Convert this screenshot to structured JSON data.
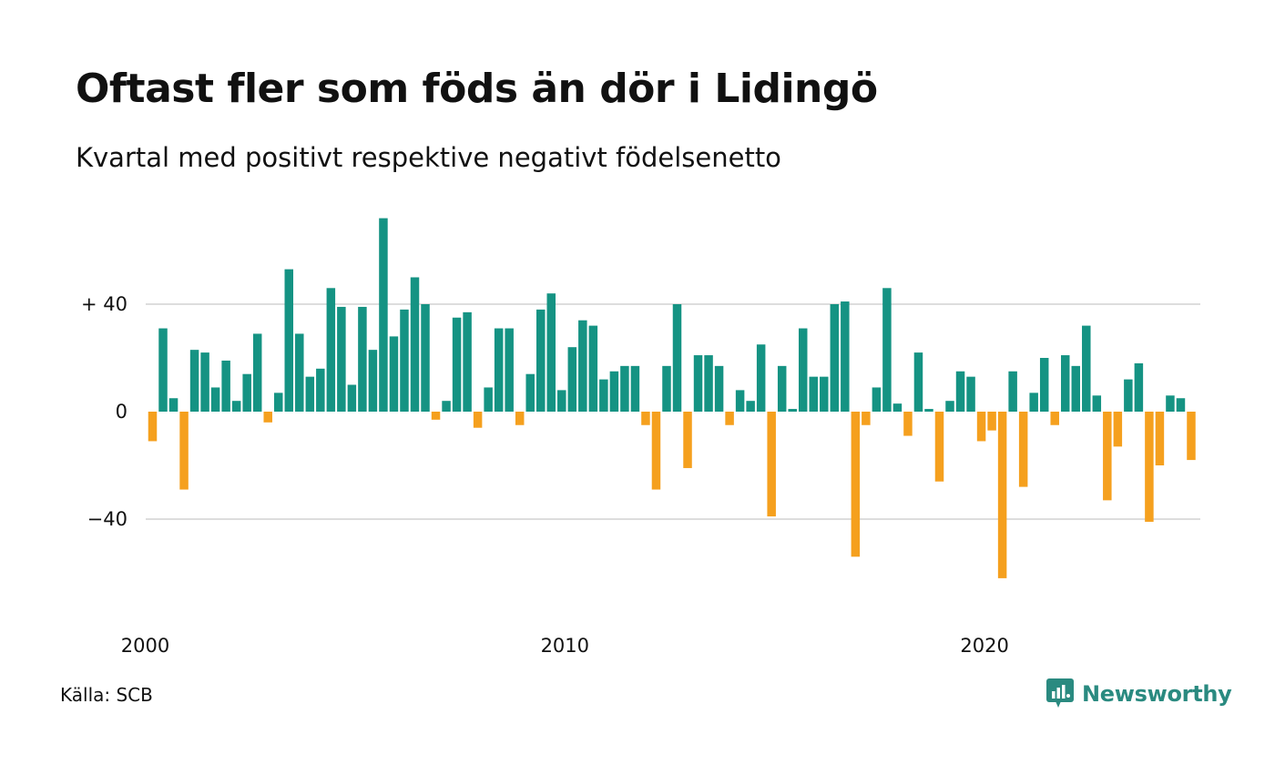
{
  "title": "Oftast fler som föds än dör i Lidingö",
  "subtitle": "Kvartal med positivt respektive negativt födelsenetto",
  "source": "Källa: SCB",
  "brand": {
    "name": "Newsworthy",
    "icon": "newsworthy-logo-icon"
  },
  "colors": {
    "positive": "#159383",
    "negative": "#f5a01e",
    "grid": "#dddddd"
  },
  "chart_data": {
    "type": "bar",
    "title": "Oftast fler som föds än dör i Lidingö",
    "subtitle": "Kvartal med positivt respektive negativt födelsenetto",
    "x_tick_labels": [
      "2000",
      "2010",
      "2020"
    ],
    "x_ticks_at_index": [
      0,
      40,
      80
    ],
    "y_ticks": [
      {
        "value": 40,
        "label": "+ 40"
      },
      {
        "value": 0,
        "label": "0"
      },
      {
        "value": -40,
        "label": "−40"
      }
    ],
    "ylim": [
      -72,
      76
    ],
    "grid": true,
    "start": "2000 Q1",
    "values": [
      -11,
      31,
      5,
      -29,
      23,
      22,
      9,
      19,
      4,
      14,
      29,
      -4,
      7,
      53,
      29,
      13,
      16,
      46,
      39,
      10,
      39,
      23,
      72,
      28,
      38,
      50,
      40,
      -3,
      4,
      35,
      37,
      -6,
      9,
      31,
      31,
      -5,
      14,
      38,
      44,
      8,
      24,
      34,
      32,
      12,
      15,
      17,
      17,
      -5,
      -29,
      17,
      40,
      -21,
      21,
      21,
      17,
      -5,
      8,
      4,
      25,
      -39,
      17,
      1,
      31,
      13,
      13,
      40,
      41,
      -54,
      -5,
      9,
      46,
      3,
      -9,
      22,
      1,
      -26,
      4,
      15,
      13,
      -11,
      -7,
      -62,
      15,
      -28,
      7,
      20,
      -5,
      21,
      17,
      32,
      6,
      -33,
      -13,
      12,
      18,
      -41,
      -20,
      6,
      5,
      -18
    ]
  }
}
